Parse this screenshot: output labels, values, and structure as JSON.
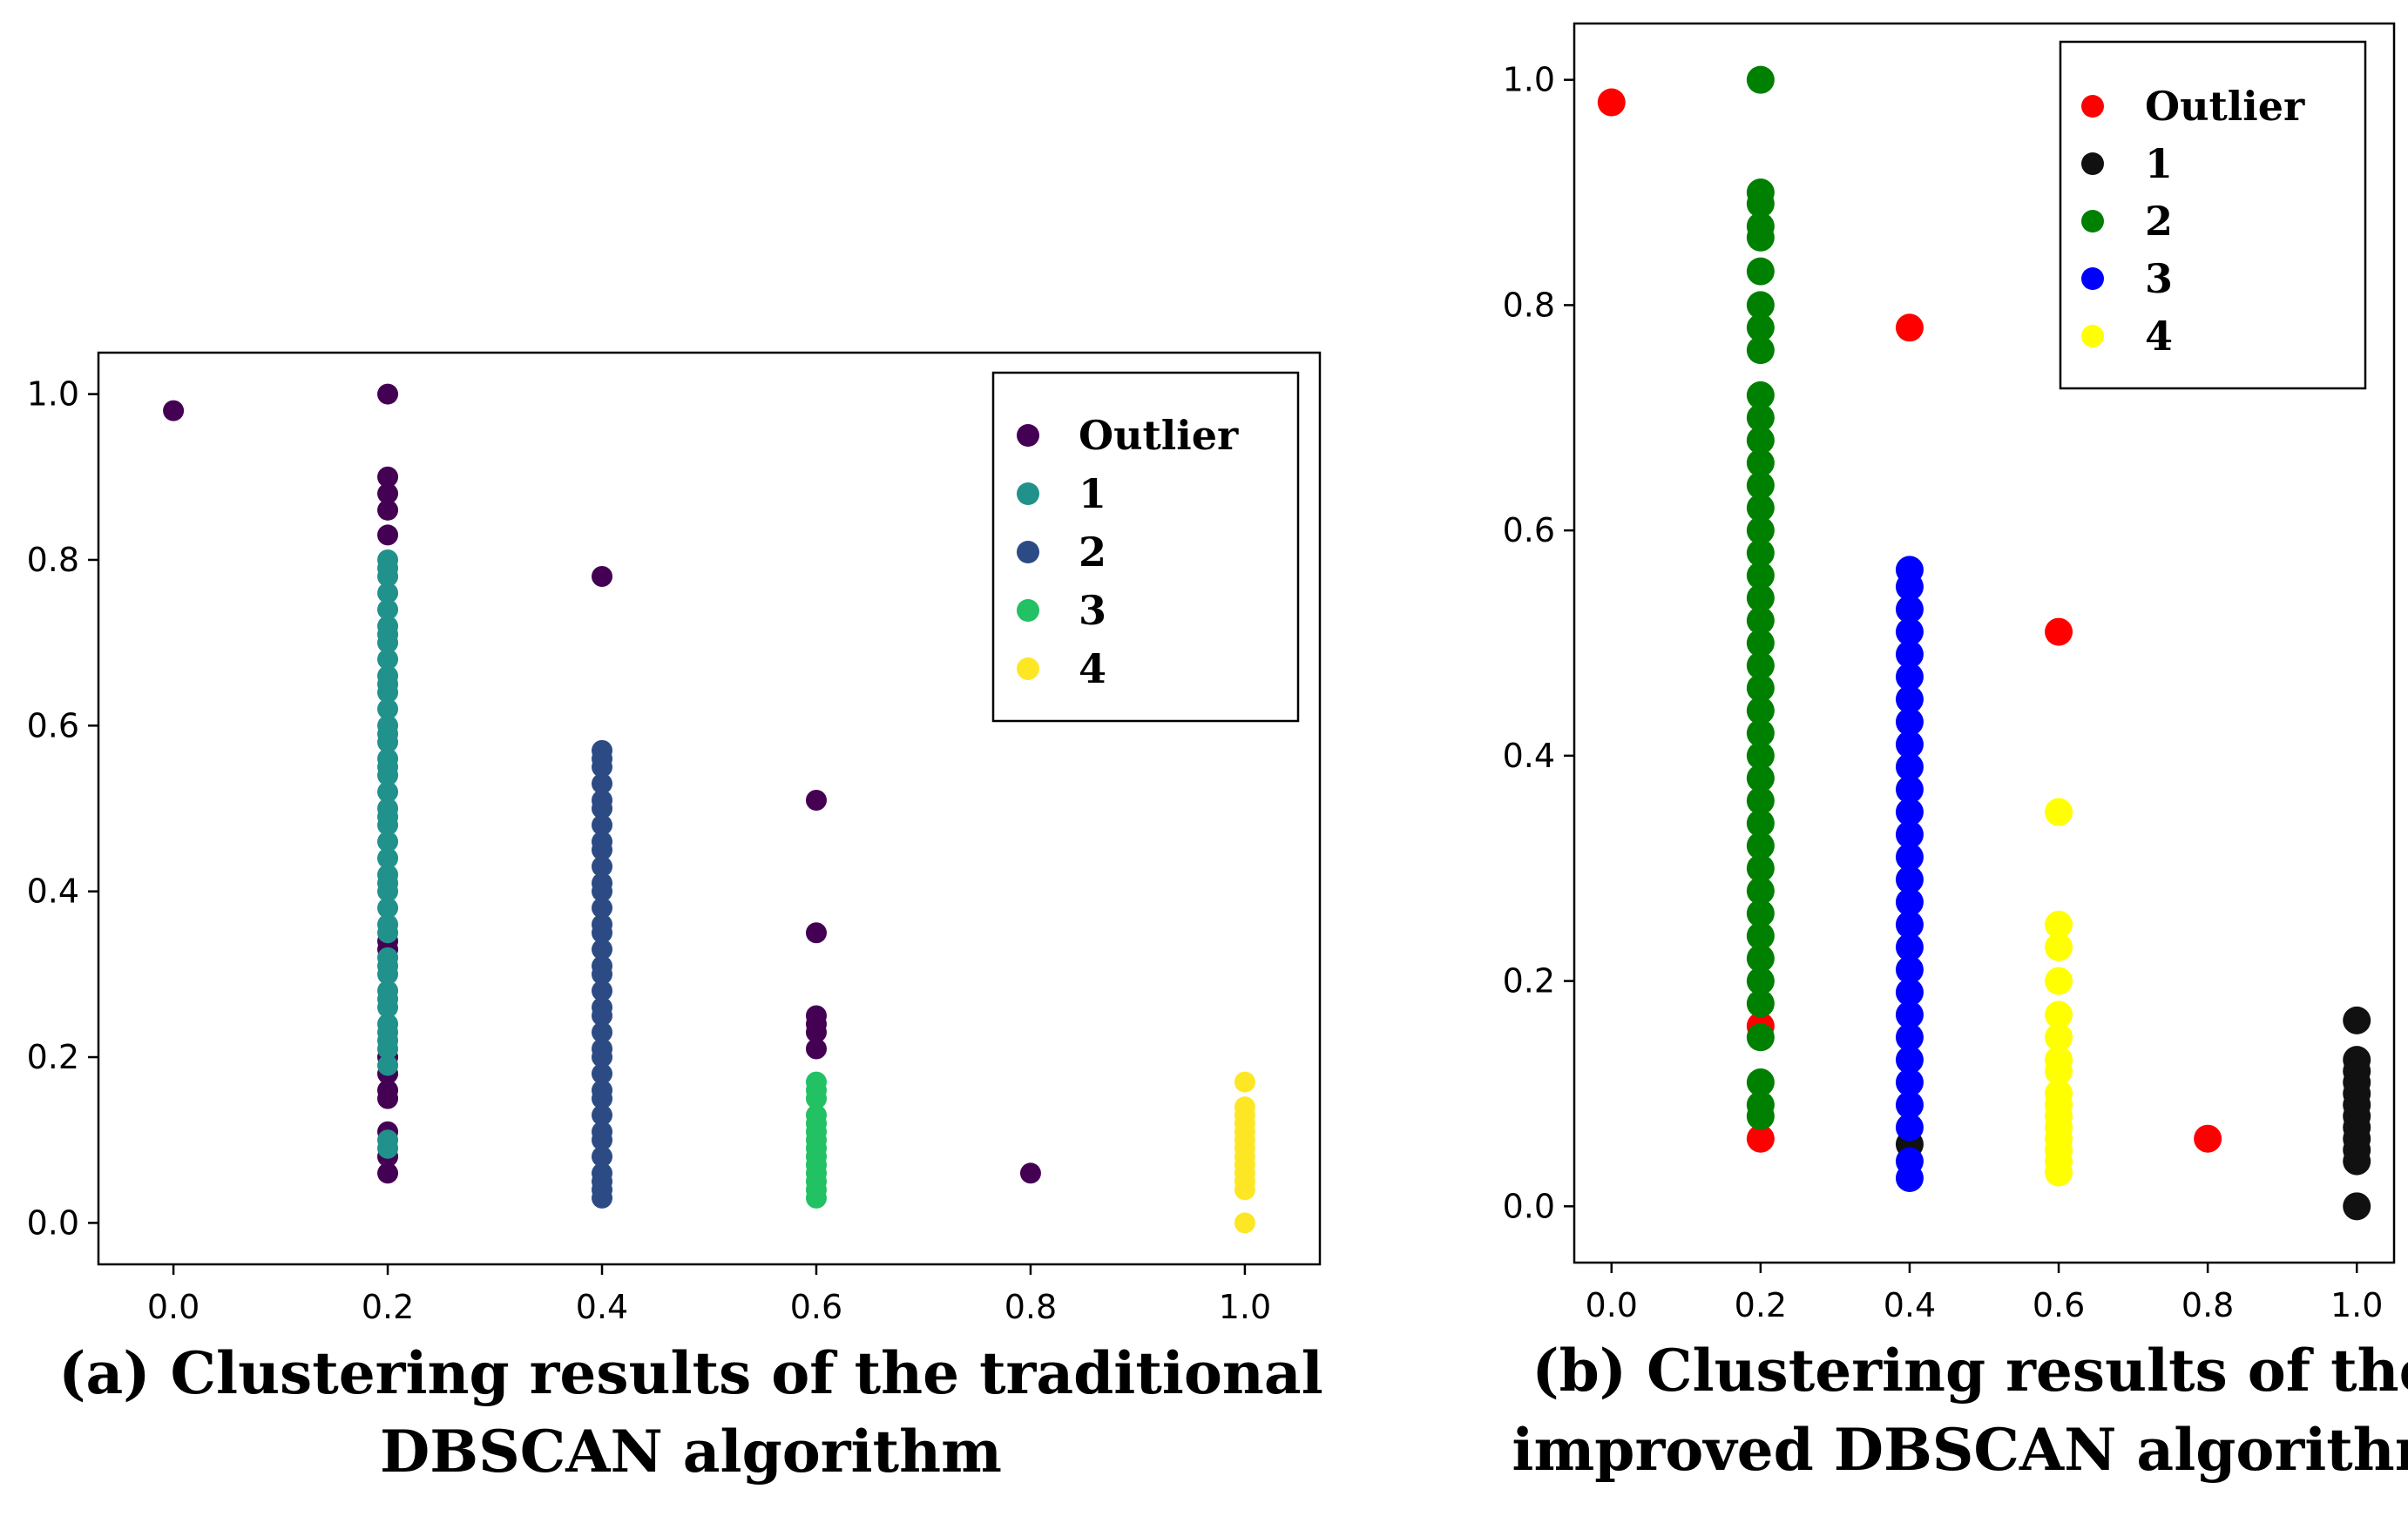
{
  "chart_data": [
    {
      "type": "scatter",
      "title": "",
      "caption_lines": [
        "(a) Clustering results of the traditional",
        "DBSCAN algorithm"
      ],
      "xlabel": "",
      "ylabel": "",
      "xlim": [
        -0.07,
        1.07
      ],
      "ylim": [
        -0.05,
        1.05
      ],
      "xticks": [
        0.0,
        0.2,
        0.4,
        0.6,
        0.8,
        1.0
      ],
      "xtick_labels": [
        "0.0",
        "0.2",
        "0.4",
        "0.6",
        "0.8",
        "1.0"
      ],
      "yticks": [
        0.0,
        0.2,
        0.4,
        0.6,
        0.8,
        1.0
      ],
      "ytick_labels": [
        "0.0",
        "0.2",
        "0.4",
        "0.6",
        "0.8",
        "1.0"
      ],
      "grid": false,
      "legend_position": "top-right",
      "series": [
        {
          "name": "Outlier",
          "color": "#440154",
          "points": [
            [
              0.0,
              0.98
            ],
            [
              0.2,
              1.0
            ],
            [
              0.2,
              0.9
            ],
            [
              0.2,
              0.88
            ],
            [
              0.2,
              0.86
            ],
            [
              0.2,
              0.83
            ],
            [
              0.2,
              0.34
            ],
            [
              0.2,
              0.33
            ],
            [
              0.2,
              0.2
            ],
            [
              0.2,
              0.18
            ],
            [
              0.2,
              0.16
            ],
            [
              0.2,
              0.15
            ],
            [
              0.2,
              0.11
            ],
            [
              0.2,
              0.08
            ],
            [
              0.2,
              0.06
            ],
            [
              0.4,
              0.78
            ],
            [
              0.6,
              0.51
            ],
            [
              0.6,
              0.35
            ],
            [
              0.6,
              0.25
            ],
            [
              0.6,
              0.24
            ],
            [
              0.6,
              0.23
            ],
            [
              0.6,
              0.21
            ],
            [
              0.8,
              0.06
            ]
          ]
        },
        {
          "name": "1",
          "color": "#21918c",
          "points": [
            [
              0.2,
              0.8
            ],
            [
              0.2,
              0.79
            ],
            [
              0.2,
              0.78
            ],
            [
              0.2,
              0.76
            ],
            [
              0.2,
              0.74
            ],
            [
              0.2,
              0.72
            ],
            [
              0.2,
              0.71
            ],
            [
              0.2,
              0.7
            ],
            [
              0.2,
              0.68
            ],
            [
              0.2,
              0.66
            ],
            [
              0.2,
              0.65
            ],
            [
              0.2,
              0.64
            ],
            [
              0.2,
              0.62
            ],
            [
              0.2,
              0.6
            ],
            [
              0.2,
              0.59
            ],
            [
              0.2,
              0.58
            ],
            [
              0.2,
              0.56
            ],
            [
              0.2,
              0.55
            ],
            [
              0.2,
              0.54
            ],
            [
              0.2,
              0.52
            ],
            [
              0.2,
              0.5
            ],
            [
              0.2,
              0.49
            ],
            [
              0.2,
              0.48
            ],
            [
              0.2,
              0.46
            ],
            [
              0.2,
              0.44
            ],
            [
              0.2,
              0.42
            ],
            [
              0.2,
              0.41
            ],
            [
              0.2,
              0.4
            ],
            [
              0.2,
              0.38
            ],
            [
              0.2,
              0.36
            ],
            [
              0.2,
              0.35
            ],
            [
              0.2,
              0.32
            ],
            [
              0.2,
              0.31
            ],
            [
              0.2,
              0.3
            ],
            [
              0.2,
              0.28
            ],
            [
              0.2,
              0.27
            ],
            [
              0.2,
              0.26
            ],
            [
              0.2,
              0.24
            ],
            [
              0.2,
              0.23
            ],
            [
              0.2,
              0.22
            ],
            [
              0.2,
              0.21
            ],
            [
              0.2,
              0.19
            ],
            [
              0.2,
              0.1
            ],
            [
              0.2,
              0.09
            ]
          ]
        },
        {
          "name": "2",
          "color": "#2c4b85",
          "points": [
            [
              0.4,
              0.57
            ],
            [
              0.4,
              0.56
            ],
            [
              0.4,
              0.55
            ],
            [
              0.4,
              0.53
            ],
            [
              0.4,
              0.51
            ],
            [
              0.4,
              0.5
            ],
            [
              0.4,
              0.48
            ],
            [
              0.4,
              0.46
            ],
            [
              0.4,
              0.45
            ],
            [
              0.4,
              0.43
            ],
            [
              0.4,
              0.41
            ],
            [
              0.4,
              0.4
            ],
            [
              0.4,
              0.38
            ],
            [
              0.4,
              0.36
            ],
            [
              0.4,
              0.35
            ],
            [
              0.4,
              0.33
            ],
            [
              0.4,
              0.31
            ],
            [
              0.4,
              0.3
            ],
            [
              0.4,
              0.28
            ],
            [
              0.4,
              0.26
            ],
            [
              0.4,
              0.25
            ],
            [
              0.4,
              0.23
            ],
            [
              0.4,
              0.21
            ],
            [
              0.4,
              0.2
            ],
            [
              0.4,
              0.18
            ],
            [
              0.4,
              0.16
            ],
            [
              0.4,
              0.15
            ],
            [
              0.4,
              0.13
            ],
            [
              0.4,
              0.11
            ],
            [
              0.4,
              0.1
            ],
            [
              0.4,
              0.08
            ],
            [
              0.4,
              0.06
            ],
            [
              0.4,
              0.05
            ],
            [
              0.4,
              0.04
            ],
            [
              0.4,
              0.03
            ]
          ]
        },
        {
          "name": "3",
          "color": "#22c163",
          "points": [
            [
              0.6,
              0.17
            ],
            [
              0.6,
              0.16
            ],
            [
              0.6,
              0.15
            ],
            [
              0.6,
              0.13
            ],
            [
              0.6,
              0.12
            ],
            [
              0.6,
              0.11
            ],
            [
              0.6,
              0.1
            ],
            [
              0.6,
              0.09
            ],
            [
              0.6,
              0.08
            ],
            [
              0.6,
              0.07
            ],
            [
              0.6,
              0.06
            ],
            [
              0.6,
              0.05
            ],
            [
              0.6,
              0.04
            ],
            [
              0.6,
              0.03
            ]
          ]
        },
        {
          "name": "4",
          "color": "#fde725",
          "points": [
            [
              1.0,
              0.17
            ],
            [
              1.0,
              0.14
            ],
            [
              1.0,
              0.13
            ],
            [
              1.0,
              0.12
            ],
            [
              1.0,
              0.11
            ],
            [
              1.0,
              0.1
            ],
            [
              1.0,
              0.09
            ],
            [
              1.0,
              0.08
            ],
            [
              1.0,
              0.07
            ],
            [
              1.0,
              0.06
            ],
            [
              1.0,
              0.05
            ],
            [
              1.0,
              0.04
            ],
            [
              1.0,
              0.0
            ]
          ]
        }
      ]
    },
    {
      "type": "scatter",
      "title": "",
      "caption_lines": [
        "(b) Clustering results of the",
        "improved DBSCAN algorithm"
      ],
      "xlabel": "",
      "ylabel": "",
      "xlim": [
        -0.05,
        1.05
      ],
      "ylim": [
        -0.05,
        1.05
      ],
      "xticks": [
        0.0,
        0.2,
        0.4,
        0.6,
        0.8,
        1.0
      ],
      "xtick_labels": [
        "0.0",
        "0.2",
        "0.4",
        "0.6",
        "0.8",
        "1.0"
      ],
      "yticks": [
        0.0,
        0.2,
        0.4,
        0.6,
        0.8,
        1.0
      ],
      "ytick_labels": [
        "0.0",
        "0.2",
        "0.4",
        "0.6",
        "0.8",
        "1.0"
      ],
      "grid": false,
      "legend_position": "top-right",
      "series": [
        {
          "name": "Outlier",
          "color": "#ff0000",
          "points": [
            [
              0.0,
              0.98
            ],
            [
              0.4,
              0.78
            ],
            [
              0.6,
              0.51
            ],
            [
              0.2,
              0.06
            ],
            [
              0.2,
              0.16
            ],
            [
              0.8,
              0.06
            ]
          ]
        },
        {
          "name": "1",
          "color": "#111111",
          "points": [
            [
              1.0,
              0.165
            ],
            [
              1.0,
              0.13
            ],
            [
              1.0,
              0.12
            ],
            [
              1.0,
              0.11
            ],
            [
              1.0,
              0.1
            ],
            [
              1.0,
              0.09
            ],
            [
              1.0,
              0.08
            ],
            [
              1.0,
              0.07
            ],
            [
              1.0,
              0.06
            ],
            [
              1.0,
              0.05
            ],
            [
              1.0,
              0.04
            ],
            [
              1.0,
              0.0
            ],
            [
              0.4,
              0.055
            ]
          ]
        },
        {
          "name": "2",
          "color": "#008000",
          "points": [
            [
              0.2,
              1.0
            ],
            [
              0.2,
              0.9
            ],
            [
              0.2,
              0.89
            ],
            [
              0.2,
              0.87
            ],
            [
              0.2,
              0.86
            ],
            [
              0.2,
              0.83
            ],
            [
              0.2,
              0.8
            ],
            [
              0.2,
              0.78
            ],
            [
              0.2,
              0.76
            ],
            [
              0.2,
              0.72
            ],
            [
              0.2,
              0.7
            ],
            [
              0.2,
              0.68
            ],
            [
              0.2,
              0.66
            ],
            [
              0.2,
              0.64
            ],
            [
              0.2,
              0.62
            ],
            [
              0.2,
              0.6
            ],
            [
              0.2,
              0.58
            ],
            [
              0.2,
              0.56
            ],
            [
              0.2,
              0.54
            ],
            [
              0.2,
              0.52
            ],
            [
              0.2,
              0.5
            ],
            [
              0.2,
              0.48
            ],
            [
              0.2,
              0.46
            ],
            [
              0.2,
              0.44
            ],
            [
              0.2,
              0.42
            ],
            [
              0.2,
              0.4
            ],
            [
              0.2,
              0.38
            ],
            [
              0.2,
              0.36
            ],
            [
              0.2,
              0.34
            ],
            [
              0.2,
              0.32
            ],
            [
              0.2,
              0.3
            ],
            [
              0.2,
              0.28
            ],
            [
              0.2,
              0.26
            ],
            [
              0.2,
              0.24
            ],
            [
              0.2,
              0.22
            ],
            [
              0.2,
              0.2
            ],
            [
              0.2,
              0.18
            ],
            [
              0.2,
              0.15
            ],
            [
              0.2,
              0.11
            ],
            [
              0.2,
              0.09
            ],
            [
              0.2,
              0.08
            ]
          ]
        },
        {
          "name": "3",
          "color": "#0000ff",
          "points": [
            [
              0.4,
              0.565
            ],
            [
              0.4,
              0.55
            ],
            [
              0.4,
              0.53
            ],
            [
              0.4,
              0.51
            ],
            [
              0.4,
              0.49
            ],
            [
              0.4,
              0.47
            ],
            [
              0.4,
              0.45
            ],
            [
              0.4,
              0.43
            ],
            [
              0.4,
              0.41
            ],
            [
              0.4,
              0.39
            ],
            [
              0.4,
              0.37
            ],
            [
              0.4,
              0.35
            ],
            [
              0.4,
              0.33
            ],
            [
              0.4,
              0.31
            ],
            [
              0.4,
              0.29
            ],
            [
              0.4,
              0.27
            ],
            [
              0.4,
              0.25
            ],
            [
              0.4,
              0.23
            ],
            [
              0.4,
              0.21
            ],
            [
              0.4,
              0.19
            ],
            [
              0.4,
              0.17
            ],
            [
              0.4,
              0.15
            ],
            [
              0.4,
              0.13
            ],
            [
              0.4,
              0.11
            ],
            [
              0.4,
              0.09
            ],
            [
              0.4,
              0.07
            ],
            [
              0.4,
              0.04
            ],
            [
              0.4,
              0.025
            ]
          ]
        },
        {
          "name": "4",
          "color": "#ffff00",
          "points": [
            [
              0.6,
              0.35
            ],
            [
              0.6,
              0.25
            ],
            [
              0.6,
              0.23
            ],
            [
              0.6,
              0.2
            ],
            [
              0.6,
              0.17
            ],
            [
              0.6,
              0.15
            ],
            [
              0.6,
              0.13
            ],
            [
              0.6,
              0.12
            ],
            [
              0.6,
              0.1
            ],
            [
              0.6,
              0.09
            ],
            [
              0.6,
              0.08
            ],
            [
              0.6,
              0.07
            ],
            [
              0.6,
              0.06
            ],
            [
              0.6,
              0.05
            ],
            [
              0.6,
              0.04
            ],
            [
              0.6,
              0.03
            ]
          ]
        }
      ]
    }
  ]
}
